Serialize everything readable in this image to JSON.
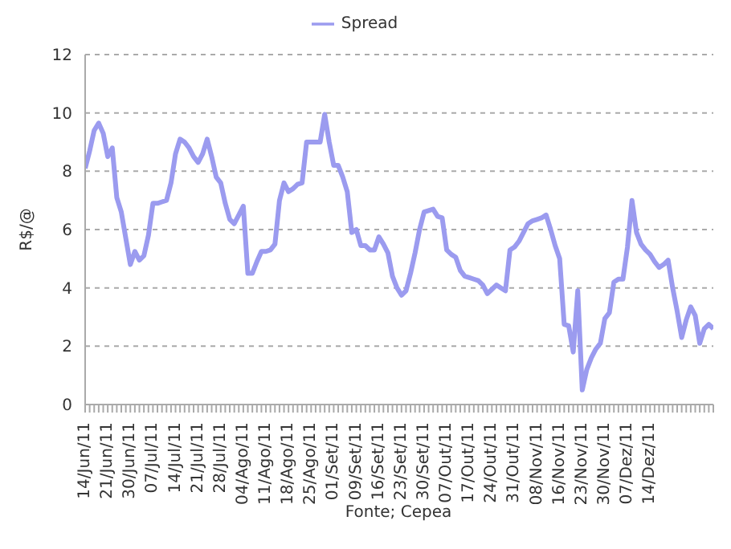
{
  "chart_data": {
    "type": "line",
    "ylabel": "R$/@",
    "annotations": [
      "Fonte; Cepea"
    ],
    "categories": [
      "14/Jun/11",
      null,
      null,
      null,
      null,
      "21/Jun/11",
      null,
      null,
      null,
      null,
      "30/Jun/11",
      null,
      null,
      null,
      null,
      "07/Jul/11",
      null,
      null,
      null,
      null,
      "14/Jul/11",
      null,
      null,
      null,
      null,
      "21/Jul/11",
      null,
      null,
      null,
      null,
      "28/Jul/11",
      null,
      null,
      null,
      null,
      "04/Ago/11",
      null,
      null,
      null,
      null,
      "11/Ago/11",
      null,
      null,
      null,
      null,
      "18/Ago/11",
      null,
      null,
      null,
      null,
      "25/Ago/11",
      null,
      null,
      null,
      null,
      "01/Set/11",
      null,
      null,
      null,
      null,
      "09/Set/11",
      null,
      null,
      null,
      null,
      "16/Set/11",
      null,
      null,
      null,
      null,
      "23/Set/11",
      null,
      null,
      null,
      null,
      "30/Set/11",
      null,
      null,
      null,
      null,
      "07/Out/11",
      null,
      null,
      null,
      null,
      "17/Out/11",
      null,
      null,
      null,
      null,
      "24/Out/11",
      null,
      null,
      null,
      null,
      "31/Out/11",
      null,
      null,
      null,
      null,
      "08/Nov/11",
      null,
      null,
      null,
      null,
      "16/Nov/11",
      null,
      null,
      null,
      null,
      "23/Nov/11",
      null,
      null,
      null,
      null,
      "30/Nov/11",
      null,
      null,
      null,
      null,
      "07/Dez/11",
      null,
      null,
      null,
      null,
      "14/Dez/11",
      null,
      null,
      null,
      null,
      null,
      null,
      null,
      null,
      null,
      null,
      null,
      null,
      null,
      null
    ],
    "ylim": [
      0,
      12
    ],
    "yticks": [
      0,
      2,
      4,
      6,
      8,
      10,
      12
    ],
    "grid": "y",
    "legend": "top",
    "marker": "none",
    "line_style": "solid",
    "series": [
      {
        "name": "Spread",
        "color": "#9b9bef",
        "values": [
          8.1,
          8.7,
          9.4,
          9.65,
          9.3,
          8.5,
          8.8,
          7.1,
          6.6,
          5.7,
          4.8,
          5.25,
          4.95,
          5.1,
          5.8,
          6.9,
          6.9,
          6.95,
          7,
          7.6,
          8.6,
          9.1,
          9,
          8.8,
          8.5,
          8.3,
          8.6,
          9.1,
          8.5,
          7.8,
          7.6,
          6.9,
          6.35,
          6.2,
          6.5,
          6.8,
          4.5,
          4.5,
          4.9,
          5.25,
          5.25,
          5.3,
          5.5,
          7,
          7.6,
          7.3,
          7.4,
          7.55,
          7.6,
          9,
          9,
          9,
          9,
          9.95,
          9,
          8.2,
          8.2,
          7.8,
          7.3,
          5.9,
          6,
          5.45,
          5.45,
          5.3,
          5.3,
          5.75,
          5.5,
          5.2,
          4.4,
          4,
          3.75,
          3.9,
          4.5,
          5.2,
          6,
          6.6,
          6.65,
          6.7,
          6.45,
          6.4,
          5.3,
          5.15,
          5.05,
          4.6,
          4.4,
          4.35,
          4.3,
          4.25,
          4.1,
          3.8,
          3.95,
          4.1,
          4,
          3.9,
          5.3,
          5.4,
          5.6,
          5.9,
          6.2,
          6.3,
          6.35,
          6.4,
          6.5,
          6,
          5.45,
          5,
          2.75,
          2.7,
          1.8,
          3.9,
          0.5,
          1.2,
          1.6,
          1.9,
          2.1,
          2.95,
          3.15,
          4.2,
          4.3,
          4.3,
          5.4,
          7,
          5.9,
          5.5,
          5.3,
          5.15,
          4.9,
          4.7,
          4.8,
          4.95,
          4,
          3.2,
          2.3,
          2.9,
          3.35,
          3.05,
          2.1,
          2.6,
          2.75,
          2.6
        ]
      }
    ]
  }
}
